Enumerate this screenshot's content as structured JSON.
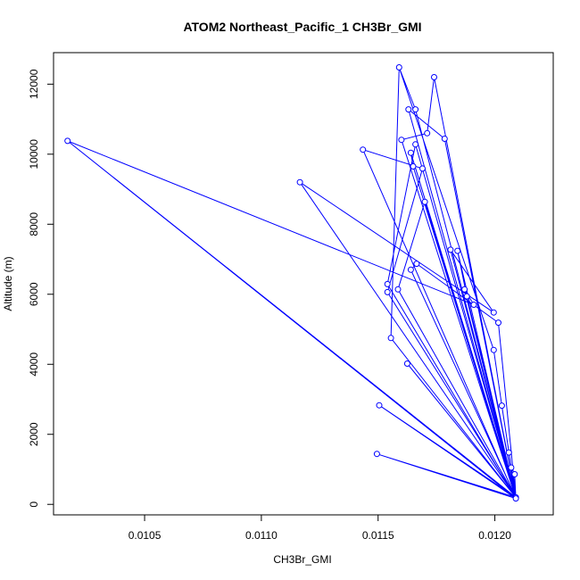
{
  "chart_data": {
    "type": "line",
    "title": "ATOM2 Northeast_Pacific_1 CH3Br_GMI",
    "xlabel": "CH3Br_GMI",
    "ylabel": "Altitude (m)",
    "xlim": [
      0.01011,
      0.01225
    ],
    "ylim": [
      -300,
      12900
    ],
    "xticks": [
      0.0105,
      0.011,
      0.0115,
      0.012
    ],
    "xtick_labels": [
      "0.0105",
      "0.0110",
      "0.0115",
      "0.0120"
    ],
    "yticks": [
      0,
      2000,
      4000,
      6000,
      8000,
      10000,
      12000
    ],
    "ytick_labels": [
      "0",
      "2000",
      "4000",
      "6000",
      "8000",
      "10000",
      "12000"
    ],
    "grid": false,
    "legend": "none",
    "series_color": "#0000ff",
    "marker": "open-circle",
    "points": [
      {
        "x": 0.01159,
        "y": 12480
      },
      {
        "x": 0.01163,
        "y": 11280
      },
      {
        "x": 0.01166,
        "y": 11280
      },
      {
        "x": 0.01174,
        "y": 12200
      },
      {
        "x": 0.01171,
        "y": 10600
      },
      {
        "x": 0.011785,
        "y": 10440
      },
      {
        "x": 0.0116,
        "y": 10410
      },
      {
        "x": 0.01166,
        "y": 10280
      },
      {
        "x": 0.01164,
        "y": 10040
      },
      {
        "x": 0.01165,
        "y": 9650
      },
      {
        "x": 0.01169,
        "y": 9590
      },
      {
        "x": 0.0117,
        "y": 8640
      },
      {
        "x": 0.01181,
        "y": 7270
      },
      {
        "x": 0.01184,
        "y": 7240
      },
      {
        "x": 0.011665,
        "y": 6870
      },
      {
        "x": 0.01164,
        "y": 6700
      },
      {
        "x": 0.01154,
        "y": 6290
      },
      {
        "x": 0.01187,
        "y": 6140
      },
      {
        "x": 0.011585,
        "y": 6140
      },
      {
        "x": 0.01154,
        "y": 6060
      },
      {
        "x": 0.01188,
        "y": 5940
      },
      {
        "x": 0.01191,
        "y": 5700
      },
      {
        "x": 0.011995,
        "y": 5480
      },
      {
        "x": 0.012015,
        "y": 5190
      },
      {
        "x": 0.011555,
        "y": 4750
      },
      {
        "x": 0.011995,
        "y": 4410
      },
      {
        "x": 0.011625,
        "y": 4020
      },
      {
        "x": 0.01203,
        "y": 2820
      },
      {
        "x": 0.011505,
        "y": 2830
      },
      {
        "x": 0.01206,
        "y": 1480
      },
      {
        "x": 0.011495,
        "y": 1440
      },
      {
        "x": 0.01207,
        "y": 1050
      },
      {
        "x": 0.012085,
        "y": 860
      },
      {
        "x": 0.01209,
        "y": 200
      },
      {
        "x": 0.01209,
        "y": 170
      },
      {
        "x": 0.011435,
        "y": 10130
      },
      {
        "x": 0.011165,
        "y": 9200
      },
      {
        "x": 0.01017,
        "y": 10380
      }
    ],
    "path_order": [
      [
        0.01159,
        12480
      ],
      [
        0.01166,
        11280
      ],
      [
        0.01209,
        200
      ],
      [
        0.01163,
        11280
      ],
      [
        0.011785,
        10440
      ],
      [
        0.01209,
        200
      ],
      [
        0.01174,
        12200
      ],
      [
        0.01171,
        10600
      ],
      [
        0.0116,
        10410
      ],
      [
        0.01209,
        170
      ],
      [
        0.011435,
        10130
      ],
      [
        0.01169,
        9590
      ],
      [
        0.01154,
        6060
      ],
      [
        0.01209,
        200
      ],
      [
        0.011165,
        9200
      ],
      [
        0.011995,
        5480
      ],
      [
        0.01181,
        7270
      ],
      [
        0.01209,
        200
      ],
      [
        0.01017,
        10380
      ],
      [
        0.01191,
        5700
      ],
      [
        0.01187,
        6140
      ],
      [
        0.01209,
        170
      ],
      [
        0.01165,
        9650
      ],
      [
        0.01164,
        10040
      ],
      [
        0.01209,
        200
      ],
      [
        0.01166,
        10280
      ],
      [
        0.01154,
        6290
      ],
      [
        0.01209,
        170
      ],
      [
        0.0117,
        8640
      ],
      [
        0.011585,
        6140
      ],
      [
        0.01209,
        200
      ],
      [
        0.01164,
        6700
      ],
      [
        0.011665,
        6870
      ],
      [
        0.012015,
        5190
      ],
      [
        0.01209,
        170
      ],
      [
        0.01184,
        7240
      ],
      [
        0.01188,
        5940
      ],
      [
        0.01209,
        200
      ],
      [
        0.011555,
        4750
      ],
      [
        0.01159,
        12480
      ],
      [
        0.011995,
        4410
      ],
      [
        0.01203,
        2820
      ],
      [
        0.01209,
        200
      ],
      [
        0.011625,
        4020
      ],
      [
        0.01209,
        200
      ],
      [
        0.011505,
        2830
      ],
      [
        0.01209,
        170
      ],
      [
        0.011495,
        1440
      ],
      [
        0.01209,
        200
      ],
      [
        0.01206,
        1480
      ],
      [
        0.01207,
        1050
      ],
      [
        0.012085,
        860
      ],
      [
        0.01209,
        170
      ],
      [
        0.01017,
        10380
      ],
      [
        0.01209,
        200
      ]
    ]
  }
}
